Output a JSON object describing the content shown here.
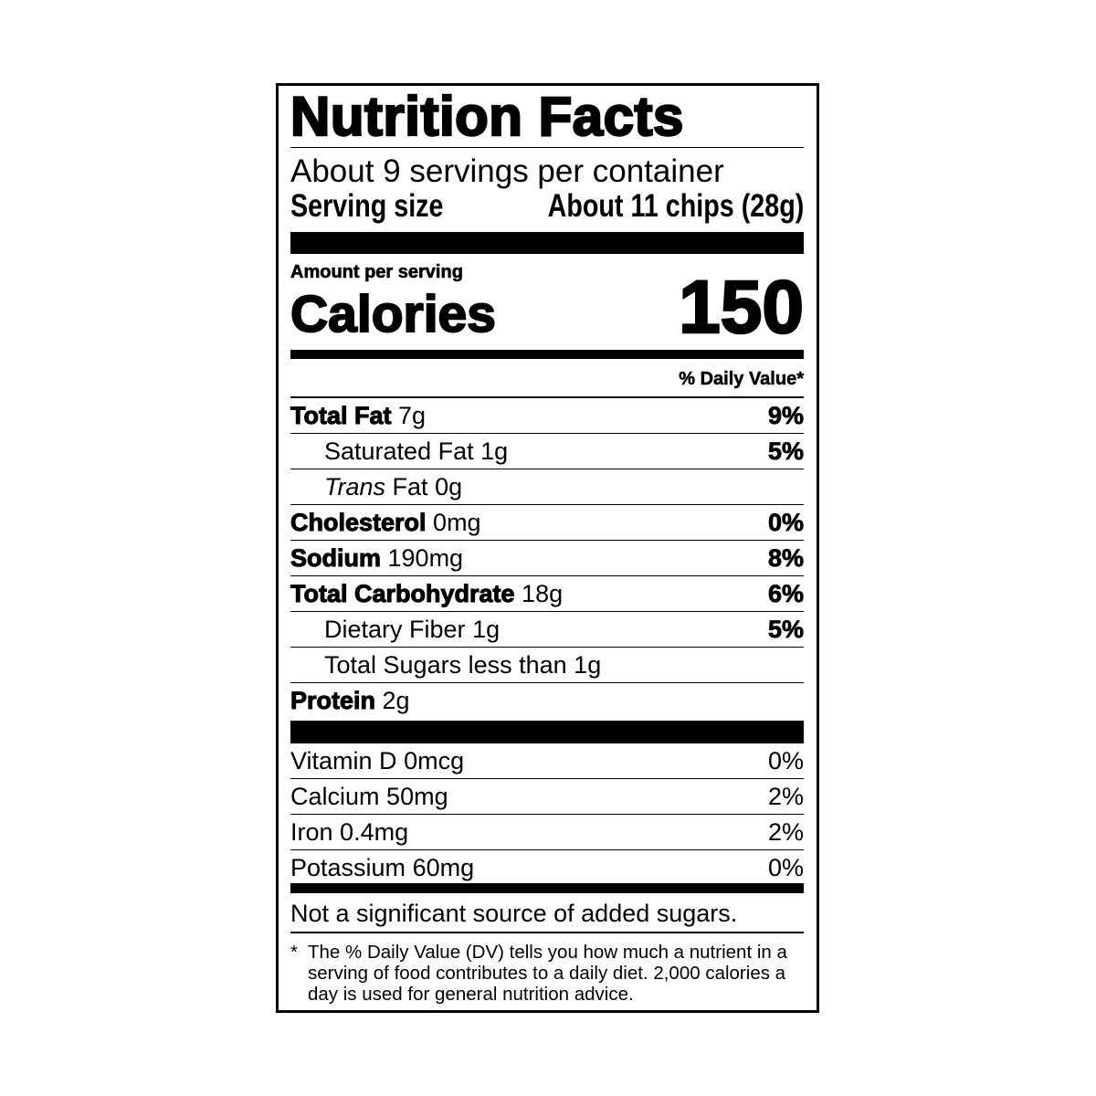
{
  "title": "Nutrition Facts",
  "servings_per_container": "About 9 servings per container",
  "serving_size": {
    "label": "Serving size",
    "value": "About 11 chips (28g)"
  },
  "amount_per_serving": "Amount per serving",
  "calories": {
    "label": "Calories",
    "value": "150"
  },
  "daily_value_header": "% Daily Value*",
  "nutrients": [
    {
      "name": "Total Fat",
      "amount": "7g",
      "dv": "9%"
    },
    {
      "name": "Saturated Fat",
      "amount": "1g",
      "dv": "5%"
    },
    {
      "italic": "Trans",
      "name": "Fat",
      "amount": "0g",
      "dv": ""
    },
    {
      "name": "Cholesterol",
      "amount": "0mg",
      "dv": "0%"
    },
    {
      "name": "Sodium",
      "amount": "190mg",
      "dv": "8%"
    },
    {
      "name": "Total Carbohydrate",
      "amount": "18g",
      "dv": "6%"
    },
    {
      "name": "Dietary Fiber",
      "amount": "1g",
      "dv": "5%"
    },
    {
      "name": "Total Sugars",
      "amount": "less than 1g",
      "dv": ""
    },
    {
      "name": "Protein",
      "amount": "2g",
      "dv": ""
    }
  ],
  "vitamins": [
    {
      "name": "Vitamin D",
      "amount": "0mcg",
      "dv": "0%"
    },
    {
      "name": "Calcium",
      "amount": "50mg",
      "dv": "2%"
    },
    {
      "name": "Iron",
      "amount": "0.4mg",
      "dv": "2%"
    },
    {
      "name": "Potassium",
      "amount": "60mg",
      "dv": "0%"
    }
  ],
  "added_sugars_note": "Not a significant source of added sugars.",
  "footnote": {
    "marker": "*",
    "text": "The % Daily Value (DV) tells you how much a nutrient in a serving of food contributes to a daily diet. 2,000 calories a day is used for general nutrition advice."
  }
}
